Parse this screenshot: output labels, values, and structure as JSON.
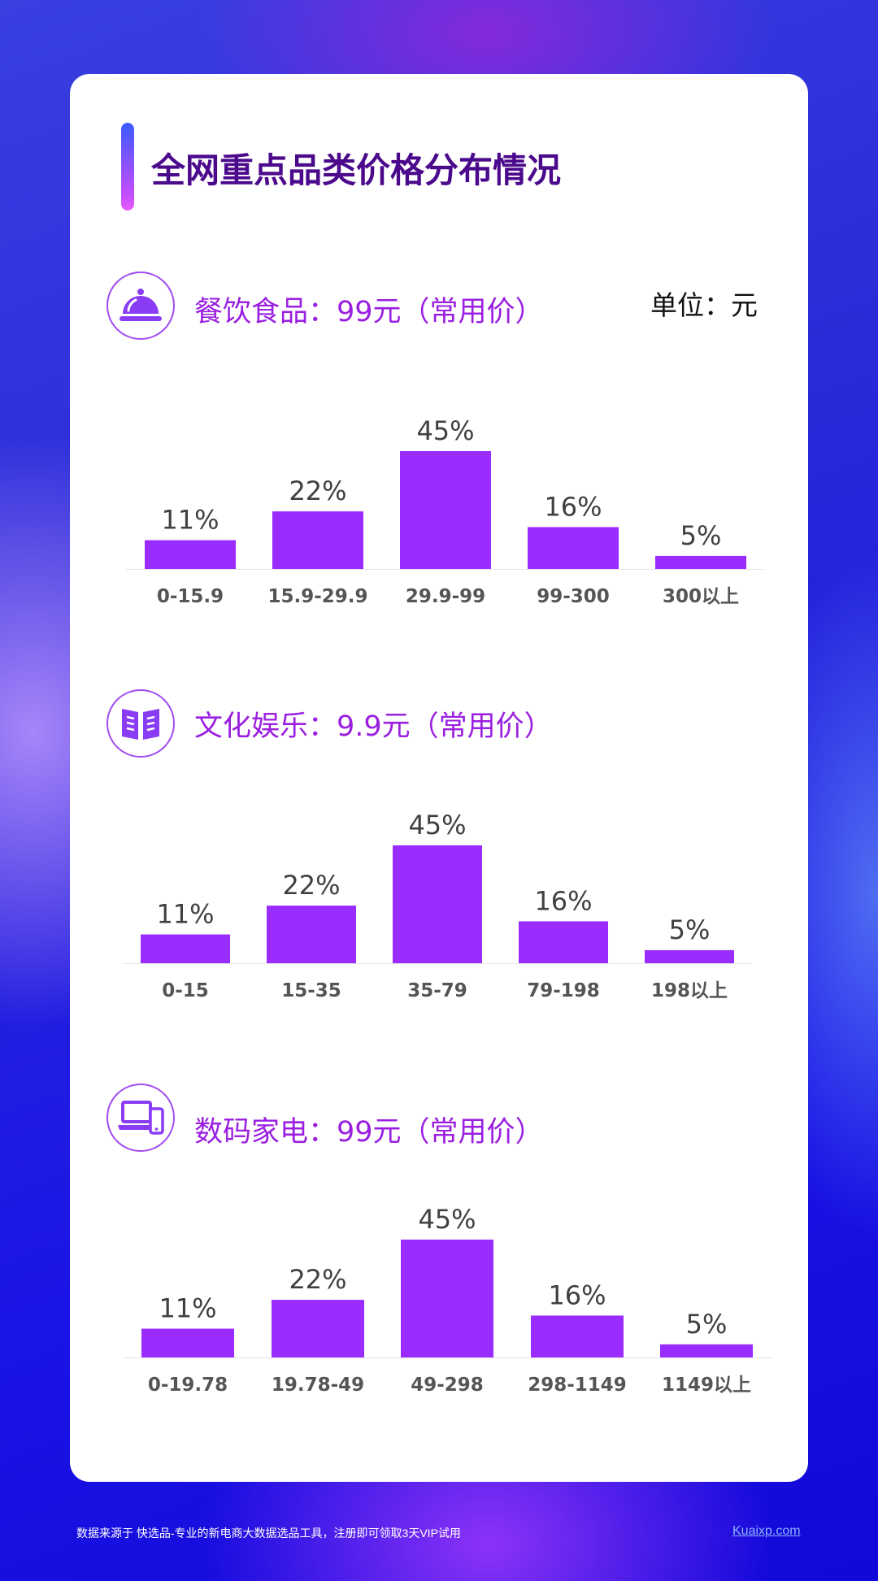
{
  "title": "全网重点品类价格分布情况",
  "unit_label": "单位：元",
  "sections": [
    {
      "title": "餐饮食品：99元（常用价）",
      "icon": "food-cloche-icon"
    },
    {
      "title": "文化娱乐：9.9元（常用价）",
      "icon": "book-icon"
    },
    {
      "title": "数码家电：99元（常用价）",
      "icon": "laptop-phone-icon"
    }
  ],
  "chart_data": [
    {
      "type": "bar",
      "categories": [
        "0-15.9",
        "15.9-29.9",
        "29.9-99",
        "99-300",
        "300以上"
      ],
      "values": [
        11,
        22,
        45,
        16,
        5
      ],
      "value_labels": [
        "11%",
        "22%",
        "45%",
        "16%",
        "5%"
      ],
      "value_unit": "%",
      "ylim": [
        0,
        45
      ],
      "grid": false,
      "bar_color": "#9a2cff"
    },
    {
      "type": "bar",
      "categories": [
        "0-15",
        "15-35",
        "35-79",
        "79-198",
        "198以上"
      ],
      "values": [
        11,
        22,
        45,
        16,
        5
      ],
      "value_labels": [
        "11%",
        "22%",
        "45%",
        "16%",
        "5%"
      ],
      "value_unit": "%",
      "ylim": [
        0,
        45
      ],
      "grid": false,
      "bar_color": "#9a2cff"
    },
    {
      "type": "bar",
      "categories": [
        "0-19.78",
        "19.78-49",
        "49-298",
        "298-1149",
        "1149以上"
      ],
      "values": [
        11,
        22,
        45,
        16,
        5
      ],
      "value_labels": [
        "11%",
        "22%",
        "45%",
        "16%",
        "5%"
      ],
      "value_unit": "%",
      "ylim": [
        0,
        45
      ],
      "grid": false,
      "bar_color": "#9a2cff"
    }
  ],
  "footer": {
    "note": "数据来源于 快选品-专业的新电商大数据选品工具，注册即可领取3天VIP试用",
    "link": "Kuaixp.com"
  }
}
